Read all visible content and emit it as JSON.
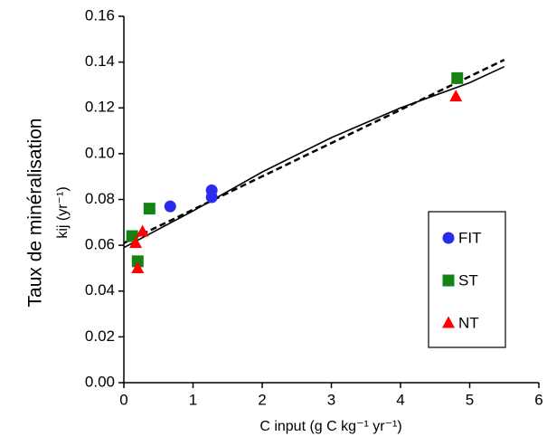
{
  "chart_data": {
    "type": "scatter",
    "y_label": "Taux de minéralisation",
    "y_label_2": "kij  (yr⁻¹)",
    "x_label": "C input (g C kg⁻¹ yr⁻¹)",
    "xlim": [
      0,
      6
    ],
    "xticks": [
      0,
      1,
      2,
      3,
      4,
      5,
      6
    ],
    "ylim": [
      0,
      0.16
    ],
    "yticks": [
      {
        "value": 0,
        "label": "0.00"
      },
      {
        "value": 0.02,
        "label": "0.02"
      },
      {
        "value": 0.04,
        "label": "0.04"
      },
      {
        "value": 0.06,
        "label": "0.06"
      },
      {
        "value": 0.08,
        "label": "0.08"
      },
      {
        "value": 0.1,
        "label": "0.10"
      },
      {
        "value": 0.12,
        "label": "0.12"
      },
      {
        "value": 0.14,
        "label": "0.14"
      },
      {
        "value": 0.16,
        "label": "0.16"
      }
    ],
    "grid": false,
    "legend": "lower right",
    "series": [
      {
        "name": "FIT",
        "color": "#2b2bef",
        "marker": "circle",
        "x": [
          0.67,
          1.27,
          1.27
        ],
        "values": [
          0.077,
          0.084,
          0.081
        ]
      },
      {
        "name": "ST",
        "color": "#138413",
        "marker": "square",
        "x": [
          0.12,
          0.2,
          0.37,
          4.82
        ],
        "values": [
          0.064,
          0.053,
          0.076,
          0.133
        ]
      },
      {
        "name": "NT",
        "color": "#ff0000",
        "marker": "triangle",
        "x": [
          0.17,
          0.2,
          0.27,
          4.8
        ],
        "values": [
          0.061,
          0.05,
          0.066,
          0.125
        ]
      }
    ],
    "lines": [
      {
        "style": "solid",
        "color": "#000000",
        "x": [
          0,
          1,
          2,
          3,
          4,
          5,
          5.5
        ],
        "values": [
          0.059,
          0.075,
          0.092,
          0.107,
          0.12,
          0.131,
          0.138
        ]
      },
      {
        "style": "dashed",
        "color": "#000000",
        "x": [
          0,
          5.5
        ],
        "values": [
          0.061,
          0.141
        ]
      }
    ]
  }
}
